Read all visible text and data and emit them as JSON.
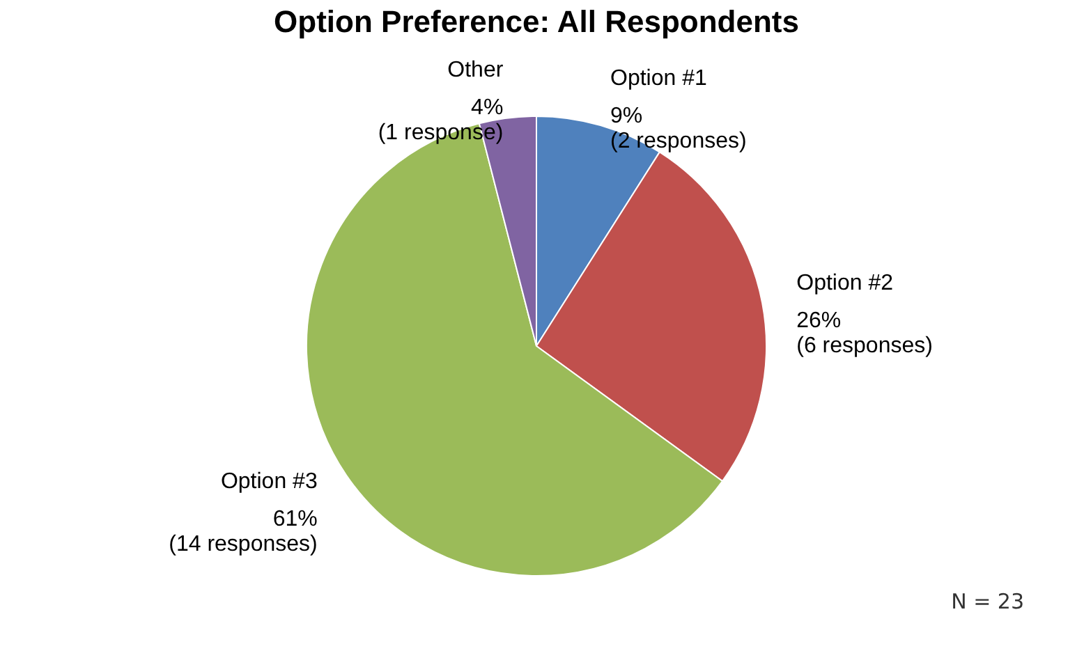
{
  "chart_data": {
    "type": "pie",
    "title": "Option Preference: All Respondents",
    "categories": [
      "Option #1",
      "Option #2",
      "Option #3",
      "Other"
    ],
    "values": [
      9,
      26,
      61,
      4
    ],
    "colors": [
      "#4f81bd",
      "#c0504d",
      "#9bbb59",
      "#8064a2"
    ],
    "value_labels": [
      "9%\n(2 responses)",
      "26%\n(6 responses)",
      "61%\n(14 responses)",
      "4%\n(1 response)"
    ],
    "annotations": [
      "N = 23"
    ],
    "legend": false
  }
}
